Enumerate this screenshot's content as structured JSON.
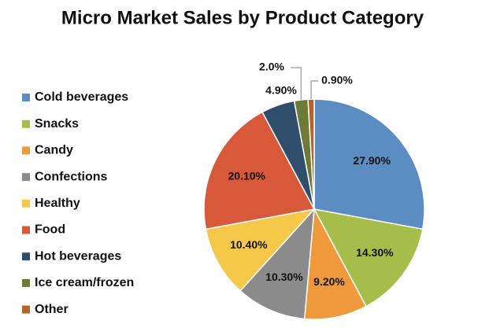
{
  "chart_data": {
    "type": "pie",
    "title": "Micro Market Sales by Product Category",
    "categories": [
      "Cold beverages",
      "Snacks",
      "Candy",
      "Confections",
      "Healthy",
      "Food",
      "Hot beverages",
      "Ice cream/frozen",
      "Other"
    ],
    "values": [
      27.9,
      14.3,
      9.2,
      10.3,
      10.4,
      20.1,
      4.9,
      2.0,
      0.9
    ],
    "value_labels": [
      "27.90%",
      "14.30%",
      "9.20%",
      "10.30%",
      "10.40%",
      "20.10%",
      "4.90%",
      "2.0%",
      "0.90%"
    ],
    "colors": [
      "#5b8cc2",
      "#a5bd4a",
      "#ee9a3c",
      "#8b8b8b",
      "#f5c84a",
      "#d8583a",
      "#2f4e6c",
      "#6c7b36",
      "#b4642b"
    ],
    "legend": "left"
  }
}
